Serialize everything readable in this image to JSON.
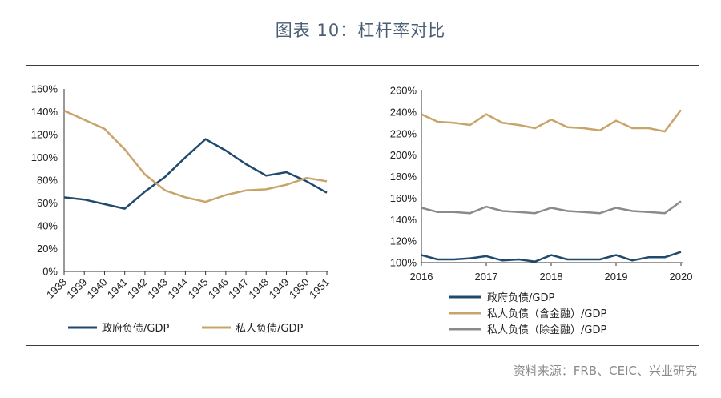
{
  "title": "图表 10：杠杆率对比",
  "source": "资料来源：FRB、CEIC、兴业研究",
  "colors": {
    "gov": "#1f4a6e",
    "private": "#c8a46a",
    "private_ex": "#8a8a8a"
  },
  "chart_data": [
    {
      "type": "line",
      "title": "",
      "xlabel": "",
      "ylabel": "",
      "x": [
        "1938",
        "1939",
        "1940",
        "1941",
        "1942",
        "1943",
        "1944",
        "1945",
        "1946",
        "1947",
        "1948",
        "1949",
        "1950",
        "1951"
      ],
      "ylim": [
        0,
        160
      ],
      "yticks": [
        "0%",
        "20%",
        "40%",
        "60%",
        "80%",
        "100%",
        "120%",
        "140%",
        "160%"
      ],
      "grid": false,
      "legend_position": "bottom",
      "series": [
        {
          "name": "政府负债/GDP",
          "color": "#1f4a6e",
          "values": [
            65,
            63,
            59,
            55,
            70,
            83,
            100,
            116,
            106,
            94,
            84,
            87,
            79,
            69
          ]
        },
        {
          "name": "私人负债/GDP",
          "color": "#c8a46a",
          "values": [
            141,
            133,
            125,
            107,
            85,
            71,
            65,
            61,
            67,
            71,
            72,
            76,
            82,
            79
          ]
        }
      ]
    },
    {
      "type": "line",
      "title": "",
      "xlabel": "",
      "ylabel": "",
      "x_ticks": [
        "2016",
        "2017",
        "2018",
        "2019",
        "2020"
      ],
      "x": [
        2016.0,
        2016.25,
        2016.5,
        2016.75,
        2017.0,
        2017.25,
        2017.5,
        2017.75,
        2018.0,
        2018.25,
        2018.5,
        2018.75,
        2019.0,
        2019.25,
        2019.5,
        2019.75,
        2020.0
      ],
      "ylim": [
        100,
        260
      ],
      "yticks": [
        "100%",
        "120%",
        "140%",
        "160%",
        "180%",
        "200%",
        "220%",
        "240%",
        "260%"
      ],
      "grid": false,
      "legend_position": "bottom",
      "series": [
        {
          "name": "政府负债/GDP",
          "color": "#1f4a6e",
          "values": [
            107,
            103,
            103,
            104,
            106,
            102,
            103,
            101,
            107,
            103,
            103,
            103,
            107,
            102,
            105,
            105,
            110
          ]
        },
        {
          "name": "私人负债（含金融）/GDP",
          "color": "#c8a46a",
          "values": [
            238,
            231,
            230,
            228,
            238,
            230,
            228,
            225,
            233,
            226,
            225,
            223,
            232,
            225,
            225,
            222,
            242
          ]
        },
        {
          "name": "私人负债（除金融）/GDP",
          "color": "#8a8a8a",
          "values": [
            151,
            147,
            147,
            146,
            152,
            148,
            147,
            146,
            151,
            148,
            147,
            146,
            151,
            148,
            147,
            146,
            157
          ]
        }
      ]
    }
  ]
}
